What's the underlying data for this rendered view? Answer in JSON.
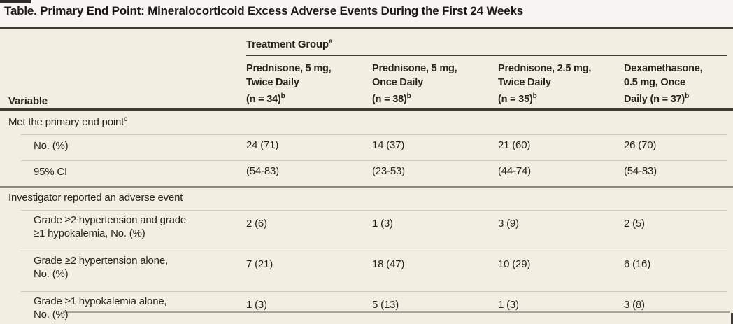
{
  "title": "Table. Primary End Point: Mineralocorticoid Excess Adverse Events During the First 24 Weeks",
  "colors": {
    "table_background": "#f2efe2",
    "rule_dark": "#3d3b32",
    "rule_medium": "#8d897a",
    "rule_light": "#cfcbba",
    "text": "#26241d"
  },
  "header": {
    "variable_label": "Variable",
    "group_label": "Treatment Group",
    "group_sup": "a",
    "columns": [
      {
        "lines": [
          "Prednisone, 5 mg,",
          "Twice Daily",
          "(n = 34)"
        ],
        "sup": "b"
      },
      {
        "lines": [
          "Prednisone, 5 mg,",
          "Once Daily",
          "(n = 38)"
        ],
        "sup": "b"
      },
      {
        "lines": [
          "Prednisone, 2.5 mg,",
          "Twice Daily",
          "(n = 35)"
        ],
        "sup": "b"
      },
      {
        "lines": [
          "Dexamethasone,",
          "0.5 mg, Once",
          "Daily (n = 37)"
        ],
        "sup": "b"
      }
    ]
  },
  "rows": [
    {
      "type": "section",
      "label": "Met the primary end point",
      "sup": "c"
    },
    {
      "type": "data",
      "label_lines": [
        "No. (%)"
      ],
      "values": [
        "24 (71)",
        "14 (37)",
        "21 (60)",
        "26 (70)"
      ]
    },
    {
      "type": "data",
      "label_lines": [
        "95% CI"
      ],
      "values": [
        "(54-83)",
        "(23-53)",
        "(44-74)",
        "(54-83)"
      ]
    },
    {
      "type": "section",
      "label": "Investigator reported an adverse event"
    },
    {
      "type": "data",
      "label_lines": [
        "Grade ≥2 hypertension and grade",
        "≥1 hypokalemia, No. (%)"
      ],
      "values": [
        "2 (6)",
        "1 (3)",
        "3 (9)",
        "2 (5)"
      ]
    },
    {
      "type": "data",
      "label_lines": [
        "Grade ≥2 hypertension alone,",
        "No. (%)"
      ],
      "values": [
        "7 (21)",
        "18 (47)",
        "10 (29)",
        "6 (16)"
      ]
    },
    {
      "type": "data",
      "label_lines": [
        "Grade ≥1 hypokalemia alone,",
        "No. (%)"
      ],
      "values": [
        "1 (3)",
        "5 (13)",
        "1 (3)",
        "3 (8)"
      ]
    }
  ]
}
